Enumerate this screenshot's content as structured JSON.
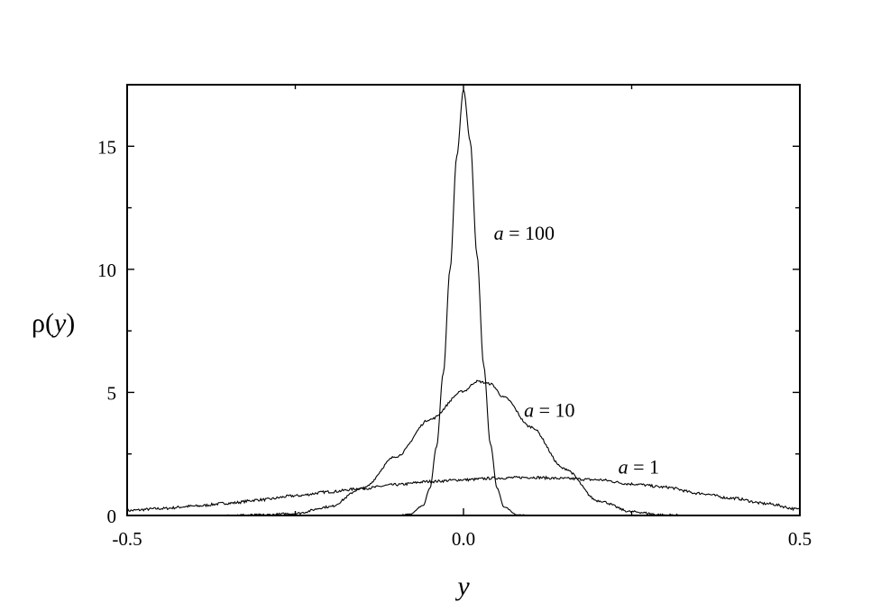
{
  "chart_data": {
    "type": "line",
    "xlabel": "y",
    "ylabel": {
      "prefix": "ρ(",
      "var": "y",
      "suffix": ")"
    },
    "xlim": [
      -0.5,
      0.5
    ],
    "ylim": [
      0,
      17.5
    ],
    "xticks": [
      {
        "value": -0.5,
        "label": "-0.5"
      },
      {
        "value": 0.0,
        "label": "0.0"
      },
      {
        "value": 0.5,
        "label": "0.5"
      }
    ],
    "xminor": [
      -0.25,
      0.25
    ],
    "yticks": [
      {
        "value": 0,
        "label": "0"
      },
      {
        "value": 5,
        "label": "5"
      },
      {
        "value": 10,
        "label": "10"
      },
      {
        "value": 15,
        "label": "15"
      }
    ],
    "yminor": [
      2.5,
      7.5,
      12.5
    ],
    "grid": false,
    "series": [
      {
        "name": "a = 1",
        "label_var": "a",
        "label_rest": " = 1",
        "label_at": [
          0.23,
          1.7
        ],
        "x": [
          -0.5,
          -0.45,
          -0.4,
          -0.35,
          -0.3,
          -0.25,
          -0.2,
          -0.15,
          -0.1,
          -0.05,
          0.0,
          0.05,
          0.1,
          0.15,
          0.2,
          0.25,
          0.3,
          0.35,
          0.4,
          0.45,
          0.5
        ],
        "y": [
          0.2,
          0.28,
          0.38,
          0.5,
          0.64,
          0.8,
          0.96,
          1.1,
          1.25,
          1.38,
          1.45,
          1.52,
          1.55,
          1.5,
          1.45,
          1.28,
          1.15,
          0.9,
          0.7,
          0.48,
          0.25
        ]
      },
      {
        "name": "a = 10",
        "label_var": "a",
        "label_rest": " = 10",
        "label_at": [
          0.09,
          4.0
        ],
        "x": [
          -0.5,
          -0.4,
          -0.3,
          -0.25,
          -0.2,
          -0.15,
          -0.1,
          -0.05,
          0.0,
          0.02,
          0.04,
          0.06,
          0.1,
          0.15,
          0.2,
          0.25,
          0.3,
          0.35,
          0.4,
          0.5
        ],
        "y": [
          0.0,
          0.0,
          0.02,
          0.08,
          0.35,
          1.1,
          2.4,
          3.9,
          5.05,
          5.45,
          5.35,
          4.8,
          3.6,
          1.9,
          0.6,
          0.15,
          0.02,
          0.0,
          0.0,
          0.0
        ],
        "noise": true
      },
      {
        "name": "a = 100",
        "label_var": "a",
        "label_rest": " = 100",
        "label_at": [
          0.045,
          11.2
        ],
        "x": [
          -0.5,
          -0.2,
          -0.1,
          -0.08,
          -0.06,
          -0.05,
          -0.04,
          -0.03,
          -0.02,
          -0.01,
          0.0,
          0.01,
          0.02,
          0.03,
          0.04,
          0.05,
          0.06,
          0.08,
          0.1,
          0.2,
          0.5
        ],
        "y": [
          0.0,
          0.0,
          0.0,
          0.05,
          0.4,
          1.1,
          2.8,
          5.8,
          10.0,
          14.6,
          17.3,
          15.2,
          10.6,
          6.1,
          2.9,
          1.1,
          0.35,
          0.03,
          0.0,
          0.0,
          0.0
        ]
      }
    ]
  }
}
